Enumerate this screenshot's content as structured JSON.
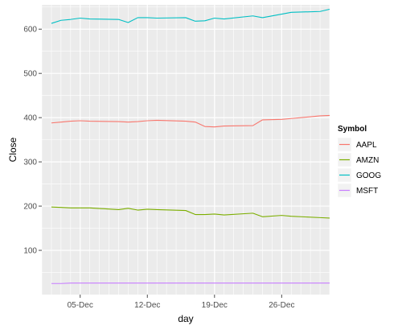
{
  "chart_data": {
    "type": "line",
    "title": "",
    "xlabel": "day",
    "ylabel": "Close",
    "legend_title": "Symbol",
    "legend_position": "right",
    "grid": true,
    "background": "#ebebeb",
    "gridline_color": "#ffffff",
    "xlim": [
      "2013-12-01",
      "2013-12-31"
    ],
    "ylim": [
      0,
      655
    ],
    "x_ticks": [
      {
        "value": "2013-12-05",
        "label": "05-Dec"
      },
      {
        "value": "2013-12-12",
        "label": "12-Dec"
      },
      {
        "value": "2013-12-19",
        "label": "19-Dec"
      },
      {
        "value": "2013-12-26",
        "label": "26-Dec"
      }
    ],
    "y_ticks": [
      100,
      200,
      300,
      400,
      500,
      600
    ],
    "x": [
      "2013-12-02",
      "2013-12-03",
      "2013-12-04",
      "2013-12-05",
      "2013-12-06",
      "2013-12-09",
      "2013-12-10",
      "2013-12-11",
      "2013-12-12",
      "2013-12-13",
      "2013-12-16",
      "2013-12-17",
      "2013-12-18",
      "2013-12-19",
      "2013-12-20",
      "2013-12-23",
      "2013-12-24",
      "2013-12-26",
      "2013-12-27",
      "2013-12-30",
      "2013-12-31"
    ],
    "series": [
      {
        "name": "AAPL",
        "color": "#f8766d",
        "values": [
          388,
          390,
          392,
          393,
          392,
          391,
          390,
          391,
          393,
          394,
          392,
          390,
          380,
          379,
          381,
          382,
          395,
          396,
          398,
          404,
          405
        ]
      },
      {
        "name": "AMZN",
        "color": "#7cae00",
        "values": [
          198,
          197,
          196,
          196,
          196,
          192,
          195,
          191,
          193,
          192,
          190,
          181,
          181,
          182,
          180,
          184,
          176,
          179,
          177,
          174,
          173
        ]
      },
      {
        "name": "GOOG",
        "color": "#00bfc4",
        "values": [
          613,
          620,
          622,
          625,
          623,
          622,
          615,
          626,
          626,
          625,
          626,
          618,
          619,
          625,
          623,
          630,
          626,
          634,
          638,
          640,
          645
        ]
      },
      {
        "name": "MSFT",
        "color": "#c77cff",
        "values": [
          25,
          25,
          26,
          26,
          26,
          26,
          26,
          26,
          26,
          26,
          26,
          26,
          26,
          26,
          26,
          26,
          26,
          26,
          26,
          26,
          26
        ]
      }
    ]
  }
}
